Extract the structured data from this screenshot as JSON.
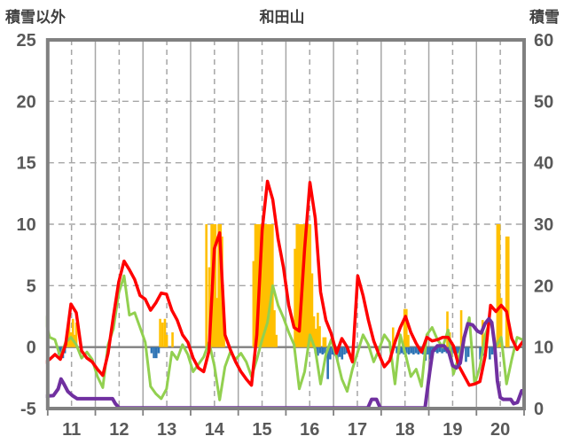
{
  "header": {
    "left_label": "積雪以外",
    "title": "和田山",
    "right_label": "積雪"
  },
  "chart_data": {
    "type": "line",
    "title": "和田山",
    "x_axis": {
      "min": 11,
      "max": 21,
      "labels": [
        11,
        12,
        13,
        14,
        15,
        16,
        17,
        18,
        19,
        20
      ],
      "label_position": "noon-of-day",
      "grid_solid_at_day_boundaries": true,
      "grid_dashed_at_noon": true
    },
    "left_axis": {
      "label": "積雪以外",
      "min": -5,
      "max": 25,
      "ticks": [
        25,
        20,
        15,
        10,
        5,
        0,
        -5
      ],
      "dashed_gridlines": [
        20,
        15,
        10,
        5
      ],
      "zero_line": 0
    },
    "right_axis": {
      "label": "積雪",
      "min": 0,
      "max": 60,
      "ticks": [
        60,
        50,
        40,
        30,
        20,
        10,
        0
      ]
    },
    "colors": {
      "red": "#FF0000",
      "green": "#92D050",
      "purple": "#7030A0",
      "orange": "#FFC000",
      "blue": "#2E74B5",
      "grid": "#A6A6A6",
      "border": "#808080",
      "text": "#595959"
    },
    "series": [
      {
        "name": "orange-bars",
        "type": "bar",
        "axis": "left",
        "color": "#FFC000",
        "bars": [
          [
            11.41,
            1.0
          ],
          [
            11.45,
            2.2
          ],
          [
            11.49,
            1.2
          ],
          [
            11.53,
            2.3
          ],
          [
            11.56,
            1.0
          ],
          [
            11.6,
            2.0
          ],
          [
            13.36,
            2.3
          ],
          [
            13.41,
            2.0
          ],
          [
            13.46,
            2.3
          ],
          [
            13.5,
            1.0
          ],
          [
            13.62,
            1.2
          ],
          [
            14.33,
            10
          ],
          [
            14.39,
            6.5
          ],
          [
            14.44,
            10
          ],
          [
            14.48,
            10
          ],
          [
            14.52,
            10
          ],
          [
            14.55,
            4
          ],
          [
            14.59,
            10
          ],
          [
            14.63,
            10
          ],
          [
            14.66,
            9
          ],
          [
            14.7,
            3
          ],
          [
            15.32,
            7
          ],
          [
            15.36,
            10
          ],
          [
            15.4,
            10
          ],
          [
            15.44,
            10
          ],
          [
            15.48,
            10
          ],
          [
            15.52,
            10
          ],
          [
            15.56,
            10
          ],
          [
            15.6,
            10
          ],
          [
            15.64,
            10
          ],
          [
            15.68,
            10
          ],
          [
            15.72,
            10
          ],
          [
            15.76,
            3
          ],
          [
            15.8,
            1
          ],
          [
            16.19,
            8
          ],
          [
            16.23,
            10
          ],
          [
            16.27,
            10
          ],
          [
            16.31,
            10
          ],
          [
            16.35,
            10
          ],
          [
            16.39,
            10
          ],
          [
            16.43,
            10
          ],
          [
            16.47,
            10
          ],
          [
            16.51,
            10
          ],
          [
            16.55,
            6
          ],
          [
            16.59,
            2.5
          ],
          [
            16.63,
            1.5
          ],
          [
            16.67,
            2.8
          ],
          [
            16.71,
            1.7
          ],
          [
            16.79,
            0.8
          ],
          [
            16.83,
            0.8
          ],
          [
            18.25,
            1.6
          ],
          [
            18.49,
            3.1
          ],
          [
            18.53,
            3.1
          ],
          [
            18.57,
            1.0
          ],
          [
            19.39,
            2.9
          ],
          [
            19.44,
            1.2
          ],
          [
            19.68,
            3.0
          ],
          [
            20.13,
            2.2
          ],
          [
            20.44,
            10
          ],
          [
            20.48,
            10
          ],
          [
            20.52,
            4
          ],
          [
            20.63,
            9
          ],
          [
            20.67,
            9
          ]
        ]
      },
      {
        "name": "blue-bars",
        "type": "bar",
        "axis": "left",
        "color": "#2E74B5",
        "bars": [
          [
            11.23,
            -0.6
          ],
          [
            11.27,
            -0.9
          ],
          [
            11.32,
            -0.9
          ],
          [
            11.36,
            -0.5
          ],
          [
            13.18,
            -0.5
          ],
          [
            13.23,
            -0.9
          ],
          [
            13.28,
            -0.9
          ],
          [
            13.33,
            -0.5
          ],
          [
            16.62,
            -0.5
          ],
          [
            16.67,
            -0.7
          ],
          [
            16.72,
            -0.5
          ],
          [
            16.77,
            -0.6
          ],
          [
            16.82,
            -0.5
          ],
          [
            16.88,
            -2.6
          ],
          [
            16.93,
            -1.0
          ],
          [
            16.98,
            -0.6
          ],
          [
            17.03,
            -0.7
          ],
          [
            17.08,
            -1.1
          ],
          [
            17.13,
            -0.8
          ],
          [
            17.18,
            -1.0
          ],
          [
            17.23,
            -0.6
          ],
          [
            17.28,
            -0.5
          ],
          [
            18.33,
            -0.5
          ],
          [
            18.38,
            -0.6
          ],
          [
            18.43,
            -0.5
          ],
          [
            18.48,
            -0.6
          ],
          [
            18.53,
            -0.5
          ],
          [
            18.58,
            -0.6
          ],
          [
            18.63,
            -0.5
          ],
          [
            18.68,
            -0.6
          ],
          [
            18.73,
            -0.5
          ],
          [
            18.78,
            -0.6
          ],
          [
            18.83,
            -0.5
          ],
          [
            18.88,
            -0.6
          ],
          [
            18.93,
            -1.1
          ],
          [
            18.98,
            -0.6
          ],
          [
            19.03,
            -1.0
          ],
          [
            19.08,
            -0.6
          ],
          [
            19.13,
            -0.4
          ],
          [
            19.18,
            -0.5
          ],
          [
            19.23,
            -0.4
          ],
          [
            19.28,
            -0.5
          ],
          [
            19.33,
            -0.4
          ],
          [
            19.38,
            -0.5
          ],
          [
            19.43,
            -0.5
          ],
          [
            19.48,
            -0.4
          ],
          [
            19.53,
            -0.5
          ],
          [
            19.58,
            -0.9
          ],
          [
            19.63,
            -0.5
          ],
          [
            19.78,
            -1.2
          ],
          [
            19.83,
            -0.8
          ],
          [
            20.08,
            -1.0
          ],
          [
            20.13,
            -0.7
          ],
          [
            20.28,
            -1.0
          ],
          [
            20.33,
            -0.6
          ]
        ]
      },
      {
        "name": "green-line",
        "type": "line",
        "axis": "left",
        "color": "#92D050",
        "width": 3,
        "x_start": 10.93,
        "x_step": 0.1115,
        "values": [
          2.6,
          0.8,
          0.6,
          -0.8,
          0.4,
          0.8,
          0.2,
          -0.9,
          -0.4,
          -1.0,
          -2.4,
          -3.3,
          0.2,
          1.5,
          4.4,
          5.8,
          2.6,
          2.8,
          1.6,
          0.4,
          -3.2,
          -3.8,
          -4.2,
          -3.4,
          -0.4,
          -1.0,
          0.2,
          -0.6,
          -2.0,
          -1.4,
          -0.8,
          0.4,
          -1.5,
          -4.3,
          -1.6,
          -0.4,
          -1.0,
          -0.5,
          -1.2,
          -2.4,
          -1.0,
          0.6,
          2.0,
          5.0,
          3.4,
          2.4,
          1.2,
          0.2,
          -3.4,
          -2.0,
          1.0,
          -0.2,
          -3.0,
          -0.6,
          0.6,
          -0.8,
          -2.6,
          -3.6,
          -1.8,
          -0.4,
          1.0,
          0.2,
          -1.2,
          -0.2,
          1.0,
          0.4,
          -3.0,
          1.0,
          -0.6,
          -2.4,
          -1.8,
          -3.2,
          1.0,
          1.6,
          0.6,
          0.0,
          1.4,
          -2.2,
          -0.8,
          0.6,
          2.4,
          -3.0,
          -1.6,
          1.0,
          2.2,
          0.0,
          0.8,
          -3.0,
          -1.0,
          0.8,
          0.6
        ]
      },
      {
        "name": "red-line",
        "type": "line",
        "axis": "left",
        "color": "#FF0000",
        "width": 3.5,
        "x_start": 10.93,
        "x_step": 0.1115,
        "values": [
          -1.3,
          -1.0,
          -0.6,
          -1.0,
          0.2,
          3.5,
          2.8,
          -0.3,
          -0.9,
          -1.2,
          -1.8,
          -2.3,
          -0.5,
          2.5,
          5.3,
          7.0,
          6.3,
          5.5,
          4.2,
          3.9,
          3.0,
          3.6,
          4.4,
          4.3,
          3.0,
          2.2,
          1.0,
          0.4,
          -0.9,
          -1.7,
          -2.0,
          -0.3,
          8.0,
          9.3,
          1.0,
          -0.2,
          -1.2,
          -2.0,
          -2.6,
          -3.1,
          1.0,
          9.5,
          13.5,
          12.0,
          8.8,
          6.5,
          3.4,
          1.6,
          1.3,
          8.0,
          13.4,
          10.5,
          4.5,
          2.2,
          1.1,
          -0.5,
          0.7,
          0.0,
          -1.2,
          5.8,
          4.2,
          2.2,
          0.5,
          -0.6,
          -1.6,
          -1.1,
          0.4,
          1.6,
          2.5,
          1.2,
          0.3,
          -0.4,
          0.8,
          0.5,
          0.6,
          0.8,
          0.8,
          0.1,
          -1.5,
          -2.3,
          -3.1,
          -3.0,
          -2.8,
          -0.7,
          3.4,
          2.9,
          3.4,
          2.9,
          0.7,
          -0.2,
          0.4
        ]
      },
      {
        "name": "purple-snow-line",
        "type": "line",
        "axis": "right",
        "color": "#7030A0",
        "width": 4,
        "points": [
          [
            10.93,
            2.0
          ],
          [
            11.12,
            2.1
          ],
          [
            11.22,
            3.2
          ],
          [
            11.28,
            4.8
          ],
          [
            11.34,
            4.0
          ],
          [
            11.42,
            2.8
          ],
          [
            11.52,
            2.1
          ],
          [
            11.62,
            1.6
          ],
          [
            12.36,
            1.6
          ],
          [
            12.42,
            0.8
          ],
          [
            12.5,
            0.1
          ],
          [
            17.72,
            0.1
          ],
          [
            17.8,
            1.5
          ],
          [
            17.9,
            1.5
          ],
          [
            17.98,
            0.1
          ],
          [
            18.92,
            0.1
          ],
          [
            19.02,
            6.0
          ],
          [
            19.08,
            9.3
          ],
          [
            19.18,
            10.2
          ],
          [
            19.32,
            10.2
          ],
          [
            19.42,
            9.2
          ],
          [
            19.5,
            7.0
          ],
          [
            19.58,
            6.6
          ],
          [
            19.66,
            7.4
          ],
          [
            19.74,
            11.5
          ],
          [
            19.82,
            13.8
          ],
          [
            19.92,
            13.6
          ],
          [
            20.02,
            12.6
          ],
          [
            20.1,
            12.3
          ],
          [
            20.18,
            13.8
          ],
          [
            20.26,
            14.6
          ],
          [
            20.32,
            14.0
          ],
          [
            20.38,
            10.5
          ],
          [
            20.44,
            4.5
          ],
          [
            20.5,
            1.8
          ],
          [
            20.56,
            1.5
          ],
          [
            20.72,
            1.5
          ],
          [
            20.78,
            0.8
          ],
          [
            20.86,
            1.0
          ],
          [
            20.95,
            2.9
          ]
        ]
      }
    ]
  }
}
